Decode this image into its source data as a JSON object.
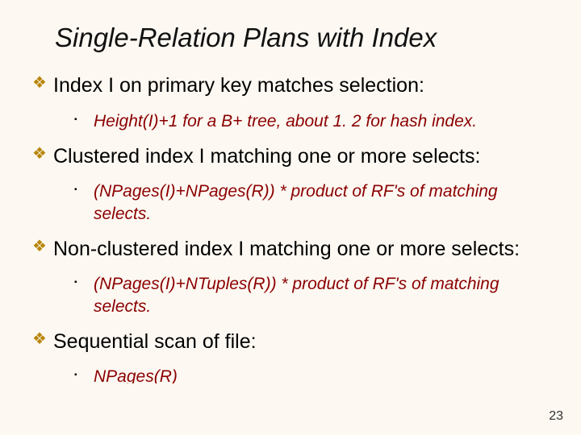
{
  "title": "Single-Relation Plans with Index",
  "items": [
    {
      "text": "Index I on primary key matches selection:",
      "sub": "Height(I)+1 for a B+ tree, about 1. 2 for hash index."
    },
    {
      "text": "Clustered index I matching one or more selects:",
      "sub": "(NPages(I)+NPages(R)) * product of RF's of matching selects."
    },
    {
      "text": "Non-clustered index I matching one or more selects:",
      "sub": "(NPages(I)+NTuples(R)) * product of RF's of matching selects."
    },
    {
      "text": "Sequential scan of file:",
      "sub": "NPages(R)"
    }
  ],
  "bullets": {
    "level1": "❖",
    "level2": "▪"
  },
  "page_number": "23",
  "colors": {
    "background": "#fdf8f2",
    "title": "#111111",
    "body": "#000000",
    "sub": "#8b0000",
    "bullet1": "#b8860b",
    "bullet2": "#000000"
  },
  "fonts": {
    "title_size_pt": 33,
    "body_size_pt": 25,
    "sub_size_pt": 21,
    "title_style": "italic",
    "sub_style": "italic"
  }
}
